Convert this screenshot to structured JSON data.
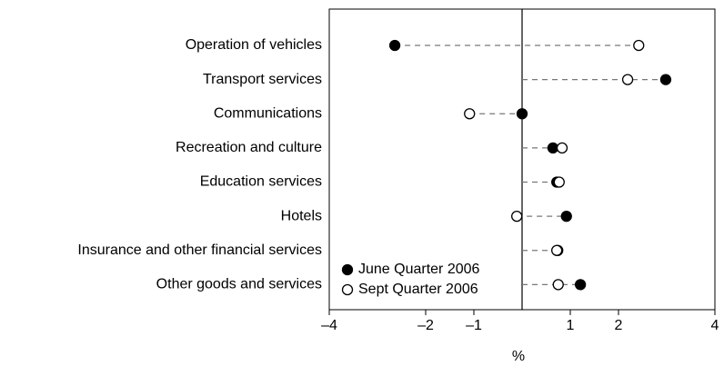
{
  "chart_data": {
    "type": "dot",
    "categories": [
      "Operation of vehicles",
      "Transport services",
      "Communications",
      "Recreation and culture",
      "Education services",
      "Hotels",
      "Insurance and other financial services",
      "Other goods and services"
    ],
    "series": [
      {
        "name": "June Quarter 2006",
        "color": "#000000",
        "values": [
          -2.64,
          2.98,
          0,
          0.64,
          0.72,
          0.92,
          0.74,
          1.21
        ]
      },
      {
        "name": "Sept Quarter 2006",
        "color": "#ffffff",
        "values": [
          2.42,
          2.19,
          -1.09,
          0.83,
          0.77,
          -0.11,
          0.72,
          0.75
        ]
      }
    ],
    "x_label": "%",
    "xlim": [
      -4,
      4
    ],
    "xticks": [
      {
        "value": -4,
        "label": "–4"
      },
      {
        "value": -2,
        "label": "–2"
      },
      {
        "value": -1,
        "label": "–1"
      },
      1,
      2,
      4
    ],
    "legend": "lower left"
  }
}
